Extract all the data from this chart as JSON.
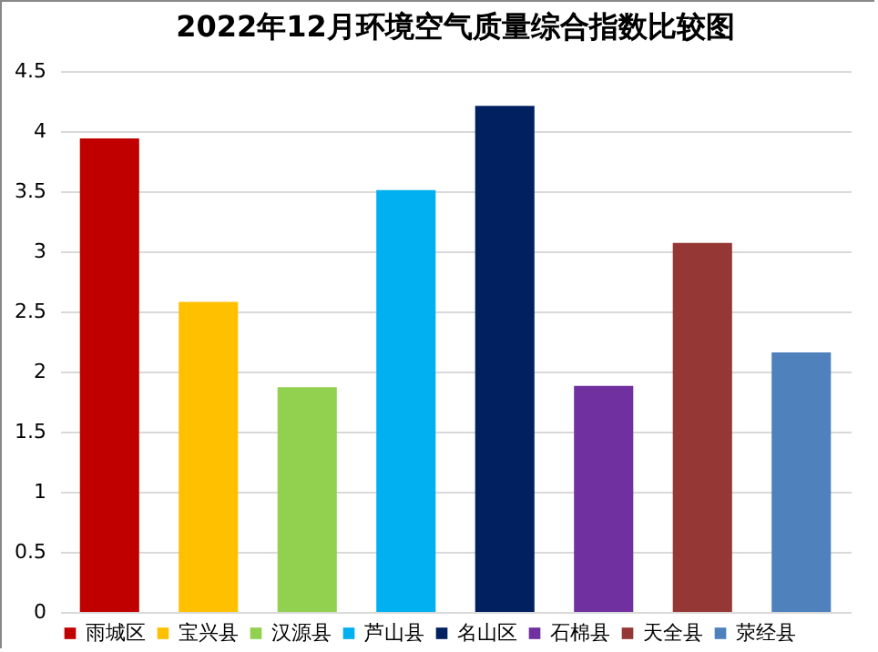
{
  "chart_data": {
    "type": "bar",
    "title": "2022年12月环境空气质量综合指数比较图",
    "categories": [
      null,
      null,
      null,
      null,
      null,
      null,
      null,
      null
    ],
    "series": [
      {
        "name": "雨城区",
        "color": "#c00000",
        "values": [
          3.94,
          null,
          null,
          null,
          null,
          null,
          null,
          null
        ]
      },
      {
        "name": "宝兴县",
        "color": "#ffc000",
        "values": [
          null,
          2.58,
          null,
          null,
          null,
          null,
          null,
          null
        ]
      },
      {
        "name": "汉源县",
        "color": "#92d050",
        "values": [
          null,
          null,
          1.87,
          null,
          null,
          null,
          null,
          null
        ]
      },
      {
        "name": "芦山县",
        "color": "#00b0f0",
        "values": [
          null,
          null,
          null,
          3.51,
          null,
          null,
          null,
          null
        ]
      },
      {
        "name": "名山区",
        "color": "#002060",
        "values": [
          null,
          null,
          null,
          null,
          4.21,
          null,
          null,
          null
        ]
      },
      {
        "name": "石棉县",
        "color": "#7030a0",
        "values": [
          null,
          null,
          null,
          null,
          null,
          1.88,
          null,
          null
        ]
      },
      {
        "name": "天全县",
        "color": "#953735",
        "values": [
          null,
          null,
          null,
          null,
          null,
          null,
          3.07,
          null
        ]
      },
      {
        "name": "荥经县",
        "color": "#4f81bd",
        "values": [
          null,
          null,
          null,
          null,
          null,
          null,
          null,
          2.16
        ]
      }
    ],
    "stacked": true,
    "ylim": [
      0,
      4.5
    ],
    "yticks": [
      0,
      0.5,
      1,
      1.5,
      2,
      2.5,
      3,
      3.5,
      4,
      4.5
    ],
    "grid": "y",
    "legend": "bottom",
    "tick_labels": "y"
  }
}
